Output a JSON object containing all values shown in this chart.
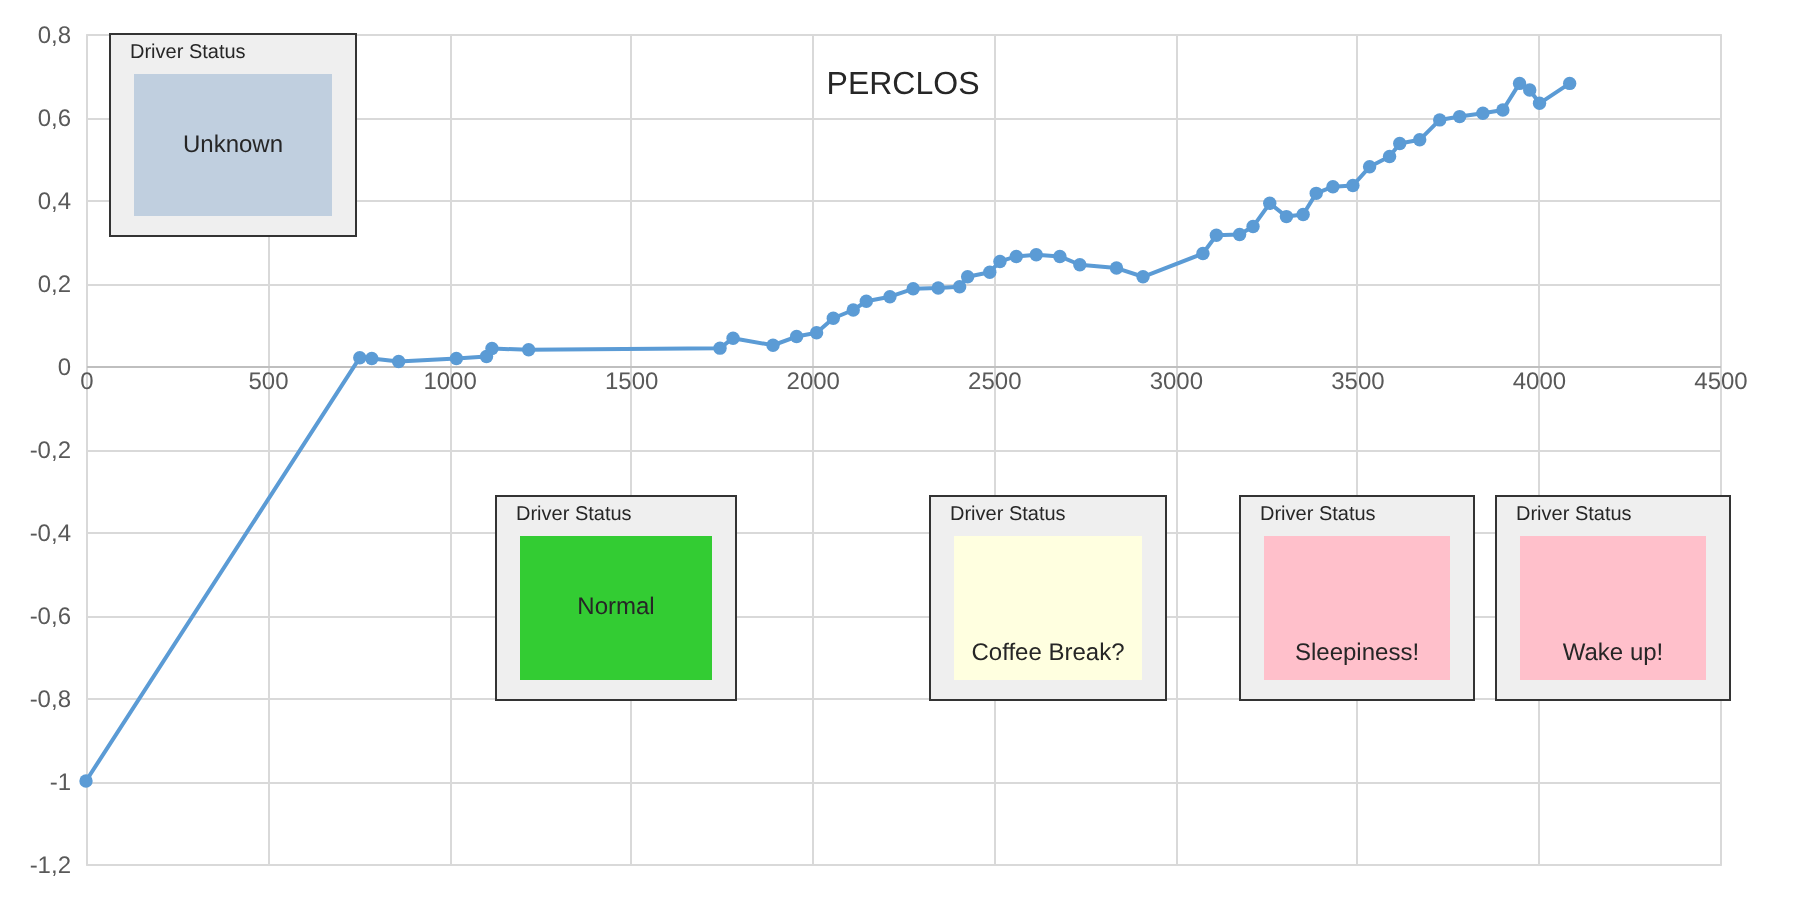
{
  "chart_data": {
    "type": "line",
    "title": "PERCLOS",
    "x": [
      0,
      754,
      787,
      861,
      1020,
      1103,
      1118,
      1219,
      1746,
      1782,
      1892,
      1957,
      2012,
      2058,
      2113,
      2149,
      2214,
      2278,
      2347,
      2406,
      2428,
      2489,
      2517,
      2562,
      2617,
      2682,
      2737,
      2838,
      2911,
      3076,
      3113,
      3177,
      3214,
      3260,
      3306,
      3352,
      3388,
      3434,
      3489,
      3535,
      3590,
      3618,
      3673,
      3728,
      3783,
      3847,
      3902,
      3948,
      3976,
      4003,
      4086
    ],
    "series": [
      {
        "color": "#5b9bd5",
        "values": [
          -1,
          0.02,
          0.018,
          0.011,
          0.018,
          0.023,
          0.042,
          0.039,
          0.043,
          0.067,
          0.05,
          0.071,
          0.08,
          0.115,
          0.135,
          0.156,
          0.167,
          0.186,
          0.188,
          0.191,
          0.215,
          0.226,
          0.252,
          0.264,
          0.268,
          0.264,
          0.244,
          0.236,
          0.215,
          0.271,
          0.315,
          0.317,
          0.336,
          0.392,
          0.36,
          0.365,
          0.416,
          0.432,
          0.435,
          0.48,
          0.505,
          0.536,
          0.545,
          0.593,
          0.601,
          0.609,
          0.617,
          0.681,
          0.665,
          0.633,
          0.681
        ]
      }
    ],
    "xlim": [
      0,
      4500
    ],
    "xticks": [
      0,
      500,
      1000,
      1500,
      2000,
      2500,
      3000,
      3500,
      4000,
      4500
    ],
    "ylim": [
      -1.2,
      0.8
    ],
    "yticks": [
      {
        "value": -1.2,
        "label": "-1,2"
      },
      {
        "value": -1,
        "label": "-1"
      },
      {
        "value": -0.8,
        "label": "-0,8"
      },
      {
        "value": -0.6,
        "label": "-0,6"
      },
      {
        "value": -0.4,
        "label": "-0,4"
      },
      {
        "value": -0.2,
        "label": "-0,2"
      },
      {
        "value": 0,
        "label": "0"
      },
      {
        "value": 0.2,
        "label": "0,2"
      },
      {
        "value": 0.4,
        "label": "0,4"
      },
      {
        "value": 0.6,
        "label": "0,6"
      },
      {
        "value": 0.8,
        "label": "0,8"
      }
    ],
    "grid": true,
    "marker": "circle",
    "line_style": "solid",
    "annotations": [
      "Driver Status",
      "Unknown",
      "Driver Status",
      "Normal",
      "Driver Status",
      "Coffee Break?",
      "Driver Status",
      "Sleepiness!",
      "Driver Status",
      "Wake up!"
    ]
  }
}
